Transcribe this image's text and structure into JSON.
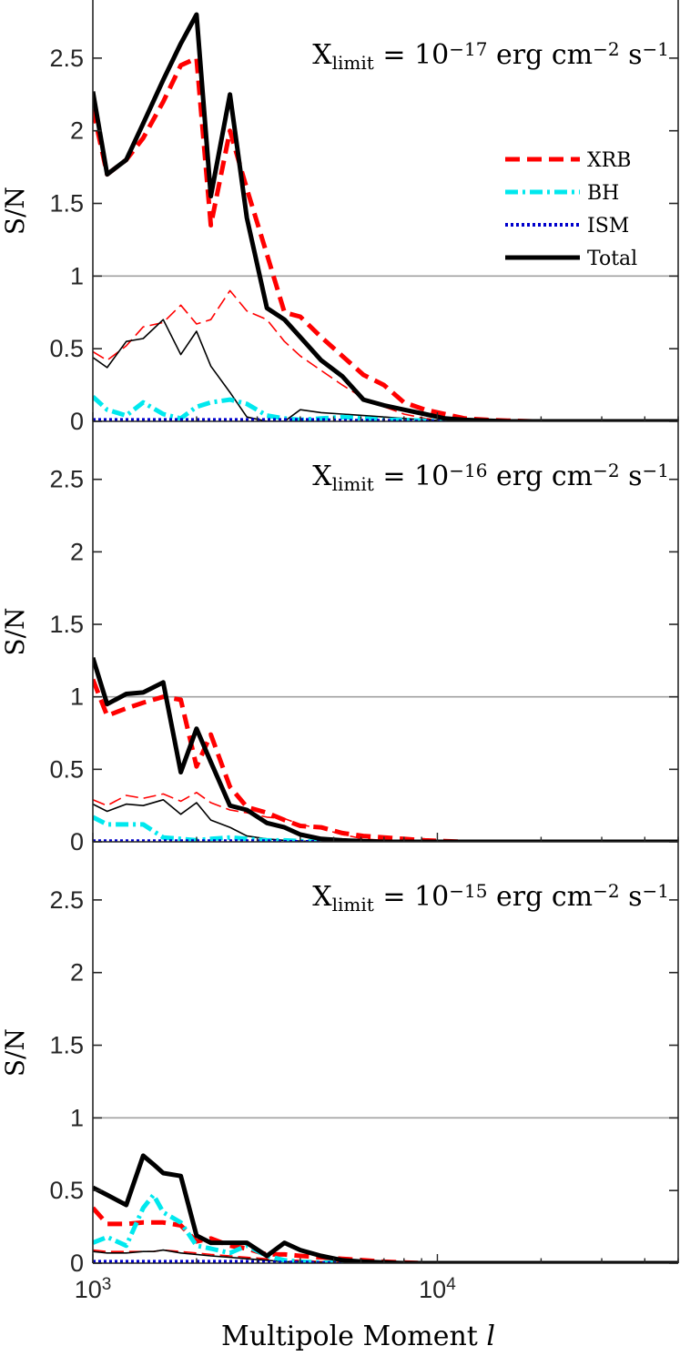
{
  "chart_data": {
    "type": "line",
    "figure_title": "",
    "xlabel": "Multipole Moment",
    "xlabel_symbol": "l",
    "xscale": "log",
    "xlim": [
      1000,
      50000
    ],
    "x_ticks": [
      {
        "value": 1000,
        "base": "10",
        "exp": "3"
      },
      {
        "value": 10000,
        "base": "10",
        "exp": "4"
      }
    ],
    "ylabel": "S/N",
    "ylim": [
      0,
      2.9
    ],
    "y_ticks": [
      0,
      0.5,
      1,
      1.5,
      2,
      2.5
    ],
    "y_tick_labels": [
      "0",
      "0.5",
      "1",
      "1.5",
      "2",
      "2.5"
    ],
    "reference_line": 1,
    "colors": {
      "XRB": "#ff0000",
      "BH": "#00e8ee",
      "ISM": "#0000cc",
      "Total": "#000000",
      "ref": "#a0a0a0",
      "xrb_thin": "#ff0000"
    },
    "legend": {
      "placement": "upper-right of top panel",
      "entries": [
        {
          "key": "XRB",
          "label": "XRB",
          "style": "dashed"
        },
        {
          "key": "BH",
          "label": "BH",
          "style": "dash-dot"
        },
        {
          "key": "ISM",
          "label": "ISM",
          "style": "dotted"
        },
        {
          "key": "Total",
          "label": "Total",
          "style": "solid"
        }
      ]
    },
    "panels": [
      {
        "id": "p17",
        "annotation": {
          "prefix": "X",
          "sub": "limit",
          "eq": "=",
          "base": "10",
          "exp": "−17",
          "unit1": "erg",
          "unit2": "cm",
          "unit2_exp": "−2",
          "unit3": "s",
          "unit3_exp": "−1"
        },
        "x": [
          1000,
          1100,
          1250,
          1400,
          1600,
          1800,
          2000,
          2200,
          2500,
          2800,
          3200,
          3600,
          4000,
          4600,
          5300,
          6100,
          7000,
          8000,
          9200,
          10500,
          12000,
          14000,
          16000,
          19000,
          22000,
          26000,
          30000,
          35000,
          40000,
          46000,
          50000
        ],
        "series": [
          {
            "key": "XRB",
            "weight": "thick",
            "values": [
              2.15,
              1.7,
              1.8,
              1.95,
              2.2,
              2.45,
              2.5,
              1.35,
              2.0,
              1.6,
              1.15,
              0.75,
              0.72,
              0.58,
              0.45,
              0.32,
              0.25,
              0.13,
              0.08,
              0.05,
              0.02,
              0.01,
              0.005,
              0,
              0,
              0,
              0,
              0,
              0,
              0,
              0
            ]
          },
          {
            "key": "BH",
            "weight": "thick",
            "values": [
              0.17,
              0.08,
              0.04,
              0.13,
              0.05,
              0.02,
              0.1,
              0.13,
              0.15,
              0.12,
              0.04,
              0.02,
              0.01,
              0.02,
              0.03,
              0.02,
              0.01,
              0.01,
              0.005,
              0,
              0,
              0,
              0,
              0,
              0,
              0,
              0,
              0,
              0,
              0,
              0
            ]
          },
          {
            "key": "ISM",
            "weight": "thick",
            "values": [
              0.01,
              0.01,
              0.01,
              0.01,
              0.01,
              0.01,
              0.01,
              0.01,
              0.01,
              0.01,
              0.01,
              0.01,
              0.01,
              0.01,
              0.005,
              0.005,
              0.005,
              0,
              0,
              0,
              0,
              0,
              0,
              0,
              0,
              0,
              0,
              0,
              0,
              0,
              0
            ]
          },
          {
            "key": "Total",
            "weight": "thick",
            "values": [
              2.27,
              1.7,
              1.8,
              2.05,
              2.35,
              2.6,
              2.8,
              1.55,
              2.25,
              1.4,
              0.78,
              0.7,
              0.58,
              0.42,
              0.31,
              0.15,
              0.11,
              0.08,
              0.05,
              0.02,
              0.01,
              0.005,
              0,
              0,
              0,
              0,
              0,
              0,
              0,
              0,
              0
            ]
          },
          {
            "key": "XRB",
            "weight": "thin",
            "values": [
              0.48,
              0.42,
              0.52,
              0.65,
              0.68,
              0.8,
              0.67,
              0.7,
              0.9,
              0.76,
              0.7,
              0.55,
              0.45,
              0.35,
              0.25,
              0.16,
              0.1,
              0.05,
              0.02,
              0.005,
              0,
              0,
              0,
              0,
              0,
              0,
              0,
              0,
              0,
              0,
              0
            ]
          },
          {
            "key": "Total",
            "weight": "thin",
            "values": [
              0.44,
              0.37,
              0.55,
              0.57,
              0.7,
              0.46,
              0.62,
              0.38,
              0.2,
              0.03,
              0,
              0,
              0.08,
              0.06,
              0.05,
              0.04,
              0.03,
              0.02,
              0.01,
              0.005,
              0,
              0,
              0,
              0,
              0,
              0,
              0,
              0,
              0,
              0,
              0
            ]
          }
        ]
      },
      {
        "id": "p16",
        "annotation": {
          "prefix": "X",
          "sub": "limit",
          "eq": "=",
          "base": "10",
          "exp": "−16",
          "unit1": "erg",
          "unit2": "cm",
          "unit2_exp": "−2",
          "unit3": "s",
          "unit3_exp": "−1"
        },
        "x": [
          1000,
          1100,
          1250,
          1400,
          1600,
          1800,
          2000,
          2200,
          2500,
          2800,
          3200,
          3600,
          4000,
          4600,
          5300,
          6100,
          7000,
          8000,
          9200,
          10500,
          12000,
          14000,
          16000,
          19000,
          22000,
          26000,
          30000,
          35000,
          40000,
          46000,
          50000
        ],
        "series": [
          {
            "key": "XRB",
            "weight": "thick",
            "values": [
              1.12,
              0.87,
              0.92,
              0.96,
              1.0,
              0.98,
              0.52,
              0.74,
              0.38,
              0.24,
              0.2,
              0.15,
              0.11,
              0.1,
              0.06,
              0.04,
              0.03,
              0.02,
              0.01,
              0.005,
              0,
              0,
              0,
              0,
              0,
              0,
              0,
              0,
              0,
              0,
              0
            ]
          },
          {
            "key": "BH",
            "weight": "thick",
            "values": [
              0.17,
              0.12,
              0.12,
              0.12,
              0.03,
              0.02,
              0.01,
              0.02,
              0.03,
              0.02,
              0.01,
              0.01,
              0.005,
              0,
              0,
              0,
              0,
              0,
              0,
              0,
              0,
              0,
              0,
              0,
              0,
              0,
              0,
              0,
              0,
              0,
              0
            ]
          },
          {
            "key": "ISM",
            "weight": "thick",
            "values": [
              0.005,
              0.005,
              0.005,
              0.005,
              0.005,
              0.005,
              0.005,
              0.005,
              0.005,
              0.005,
              0.005,
              0,
              0,
              0,
              0,
              0,
              0,
              0,
              0,
              0,
              0,
              0,
              0,
              0,
              0,
              0,
              0,
              0,
              0,
              0,
              0
            ]
          },
          {
            "key": "Total",
            "weight": "thick",
            "values": [
              1.27,
              0.95,
              1.02,
              1.03,
              1.1,
              0.48,
              0.78,
              0.55,
              0.25,
              0.22,
              0.13,
              0.1,
              0.05,
              0.02,
              0.01,
              0.005,
              0,
              0,
              0,
              0,
              0,
              0,
              0,
              0,
              0,
              0,
              0,
              0,
              0,
              0,
              0
            ]
          },
          {
            "key": "XRB",
            "weight": "thin",
            "values": [
              0.29,
              0.25,
              0.32,
              0.3,
              0.33,
              0.28,
              0.34,
              0.27,
              0.22,
              0.2,
              0.17,
              0.16,
              0.12,
              0.09,
              0.05,
              0.02,
              0.01,
              0.005,
              0,
              0,
              0,
              0,
              0,
              0,
              0,
              0,
              0,
              0,
              0,
              0,
              0
            ]
          },
          {
            "key": "Total",
            "weight": "thin",
            "values": [
              0.26,
              0.21,
              0.26,
              0.25,
              0.29,
              0.19,
              0.27,
              0.15,
              0.1,
              0.04,
              0.02,
              0.01,
              0.005,
              0,
              0,
              0,
              0,
              0,
              0,
              0,
              0,
              0,
              0,
              0,
              0,
              0,
              0,
              0,
              0,
              0,
              0
            ]
          }
        ]
      },
      {
        "id": "p15",
        "annotation": {
          "prefix": "X",
          "sub": "limit",
          "eq": "=",
          "base": "10",
          "exp": "−15",
          "unit1": "erg",
          "unit2": "cm",
          "unit2_exp": "−2",
          "unit3": "s",
          "unit3_exp": "−1"
        },
        "x": [
          1000,
          1100,
          1250,
          1400,
          1500,
          1600,
          1800,
          2000,
          2200,
          2500,
          2800,
          3200,
          3600,
          4000,
          4600,
          5300,
          6100,
          7000,
          8000,
          9200,
          10500,
          12000,
          14000,
          16000,
          19000,
          22000,
          26000,
          30000,
          35000,
          40000,
          50000
        ],
        "series": [
          {
            "key": "XRB",
            "weight": "thick",
            "values": [
              0.38,
              0.27,
              0.27,
              0.28,
              0.28,
              0.28,
              0.26,
              0.15,
              0.17,
              0.12,
              0.1,
              0.06,
              0.06,
              0.05,
              0.04,
              0.03,
              0.02,
              0.01,
              0.005,
              0,
              0,
              0,
              0,
              0,
              0,
              0,
              0,
              0,
              0,
              0,
              0
            ]
          },
          {
            "key": "BH",
            "weight": "thick",
            "values": [
              0.14,
              0.18,
              0.12,
              0.38,
              0.47,
              0.35,
              0.28,
              0.12,
              0.1,
              0.07,
              0.12,
              0.05,
              0.02,
              0.01,
              0.005,
              0,
              0,
              0,
              0,
              0,
              0,
              0,
              0,
              0,
              0,
              0,
              0,
              0,
              0,
              0,
              0
            ]
          },
          {
            "key": "ISM",
            "weight": "thick",
            "values": [
              0.01,
              0.01,
              0.01,
              0.01,
              0.01,
              0.01,
              0.01,
              0.01,
              0.01,
              0.01,
              0.01,
              0.005,
              0.005,
              0.005,
              0,
              0,
              0,
              0,
              0,
              0,
              0,
              0,
              0,
              0,
              0,
              0,
              0,
              0,
              0,
              0,
              0
            ]
          },
          {
            "key": "Total",
            "weight": "thick",
            "values": [
              0.52,
              0.47,
              0.4,
              0.74,
              0.68,
              0.62,
              0.6,
              0.19,
              0.14,
              0.14,
              0.14,
              0.05,
              0.14,
              0.09,
              0.05,
              0.02,
              0.01,
              0.005,
              0,
              0,
              0,
              0,
              0,
              0,
              0,
              0,
              0,
              0,
              0,
              0,
              0
            ]
          },
          {
            "key": "XRB",
            "weight": "thin",
            "values": [
              0.09,
              0.08,
              0.08,
              0.08,
              0.08,
              0.09,
              0.08,
              0.07,
              0.06,
              0.05,
              0.04,
              0.03,
              0.02,
              0.02,
              0.01,
              0.005,
              0,
              0,
              0,
              0,
              0,
              0,
              0,
              0,
              0,
              0,
              0,
              0,
              0,
              0,
              0
            ]
          },
          {
            "key": "Total",
            "weight": "thin",
            "values": [
              0.08,
              0.07,
              0.07,
              0.08,
              0.08,
              0.09,
              0.07,
              0.06,
              0.05,
              0.04,
              0.03,
              0.02,
              0.01,
              0.01,
              0.005,
              0,
              0,
              0,
              0,
              0,
              0,
              0,
              0,
              0,
              0,
              0,
              0,
              0,
              0,
              0,
              0
            ]
          }
        ]
      }
    ]
  }
}
